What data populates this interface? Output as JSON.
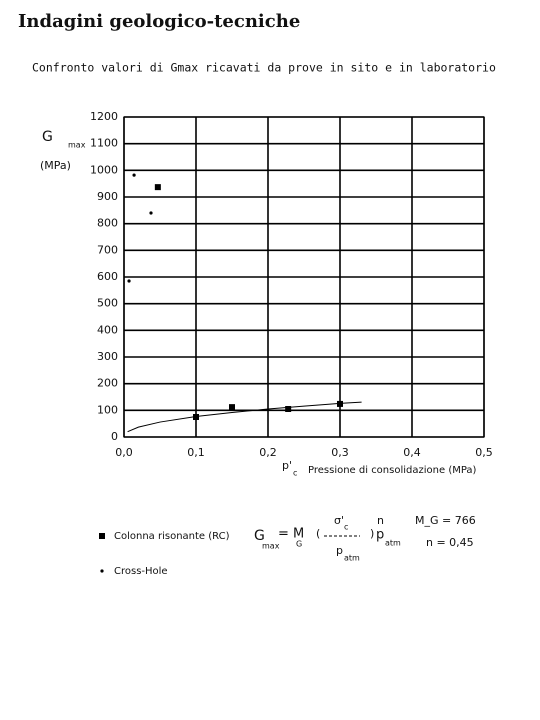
{
  "chart_data": {
    "type": "scatter",
    "title": "Indagini geologico-tecniche",
    "subtitle": "Confronto valori di Gmax ricavati da prove in sito e in laboratorio",
    "y_label": {
      "symbol": "G",
      "sub": "max",
      "unit": "(MPa)"
    },
    "x_label": {
      "symbol": "p'",
      "sub": "c",
      "text": "Pressione di consolidazione (MPa)"
    },
    "xlim": [
      0,
      0.5
    ],
    "xticks": [
      {
        "value": 0,
        "label": "0,0"
      },
      {
        "value": 0.1,
        "label": "0,1"
      },
      {
        "value": 0.2,
        "label": "0,2"
      },
      {
        "value": 0.3,
        "label": "0,3"
      },
      {
        "value": 0.4,
        "label": "0,4"
      },
      {
        "value": 0.5,
        "label": "0,5"
      }
    ],
    "ylim": [
      0,
      1200
    ],
    "yticks": [
      0,
      100,
      200,
      300,
      400,
      500,
      600,
      700,
      800,
      900,
      1000,
      1100,
      1200
    ],
    "grid": true,
    "series": [
      {
        "name": "Colonna risonante (RC)",
        "marker": "square",
        "color": "#000000",
        "x": [
          0.1,
          0.15,
          0.228,
          0.3,
          0.047
        ],
        "values": [
          75,
          112,
          105,
          124,
          937
        ]
      },
      {
        "name": "Cross-Hole",
        "marker": "dot",
        "color": "#000000",
        "x": [
          0.014,
          0.0375,
          0.007
        ],
        "values": [
          982,
          840,
          585
        ]
      },
      {
        "marker": "line",
        "color": "#000000",
        "x": [
          0.005,
          0.02,
          0.05,
          0.1,
          0.15,
          0.2,
          0.25,
          0.3,
          0.33
        ],
        "values": [
          20,
          37,
          56,
          77,
          92,
          105,
          116,
          126,
          131
        ]
      }
    ],
    "formula": {
      "g": "G",
      "g_sub": "max",
      "eq": "= M",
      "m_sub": "G",
      "num": "σ'",
      "num_sub": "c",
      "den": "p",
      "den_sub": "atm",
      "exp": "n",
      "p": "p",
      "p_sub": "atm"
    },
    "parameters": [
      "M_G = 766",
      "n = 0,45"
    ]
  }
}
